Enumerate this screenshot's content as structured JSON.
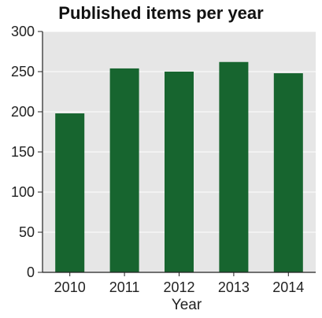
{
  "colors": {
    "bar": "#17652f",
    "plot_background": "#e6e6e6",
    "axis": "#222222",
    "gridline": "#ffffff"
  },
  "chart_data": {
    "type": "bar",
    "title": "Published items per year",
    "xlabel": "Year",
    "ylabel": "",
    "categories": [
      "2010",
      "2011",
      "2012",
      "2013",
      "2014"
    ],
    "values": [
      198,
      254,
      250,
      262,
      248
    ],
    "ylim": [
      0,
      300
    ],
    "yticks": [
      "0",
      "50",
      "100",
      "150",
      "200",
      "250",
      "300"
    ],
    "grid": true,
    "legend": "none"
  }
}
